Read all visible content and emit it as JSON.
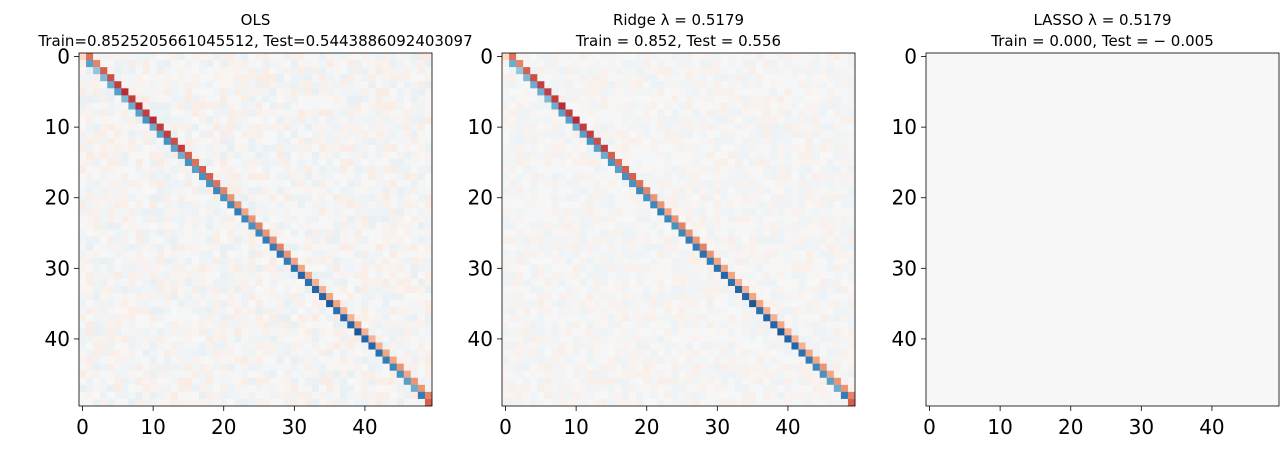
{
  "chart_data": [
    {
      "type": "heatmap",
      "title_lines": [
        "OLS",
        "Train=0.8525205661045512, Test=0.5443886092403097"
      ],
      "size": 50,
      "colormap": "RdBu",
      "diagonal_pattern": {
        "main": [
          0.2,
          -0.55,
          -0.4,
          -0.45,
          -0.5,
          -0.55,
          -0.45,
          -0.5,
          -0.55,
          -0.6,
          -0.5,
          -0.55,
          -0.6,
          -0.55,
          -0.5,
          -0.6,
          -0.55,
          -0.6,
          -0.6,
          -0.65,
          -0.6,
          -0.65,
          -0.7,
          -0.65,
          -0.6,
          -0.65,
          -0.7,
          -0.7,
          -0.75,
          -0.7,
          -0.75,
          -0.8,
          -0.75,
          -0.8,
          -0.8,
          -0.85,
          -0.75,
          -0.8,
          -0.8,
          -0.85,
          -0.8,
          -0.8,
          -0.75,
          -0.7,
          -0.65,
          -0.6,
          -0.55,
          -0.5,
          -0.7,
          0.6
        ],
        "upper": [
          0.55,
          0.5,
          0.6,
          0.65,
          0.7,
          0.75,
          0.7,
          0.75,
          0.7,
          0.75,
          0.7,
          0.7,
          0.65,
          0.7,
          0.6,
          0.55,
          0.6,
          0.6,
          0.55,
          0.5,
          0.45,
          0.45,
          0.4,
          0.45,
          0.5,
          0.45,
          0.45,
          0.5,
          0.45,
          0.4,
          0.4,
          0.4,
          0.35,
          0.35,
          0.4,
          0.4,
          0.35,
          0.35,
          0.4,
          0.35,
          0.35,
          0.35,
          0.4,
          0.4,
          0.45,
          0.4,
          0.45,
          0.45,
          0.5
        ]
      },
      "background_noise": 0.08,
      "xticks": [
        "0",
        "10",
        "20",
        "30",
        "40"
      ],
      "yticks": [
        "0",
        "10",
        "20",
        "30",
        "40"
      ]
    },
    {
      "type": "heatmap",
      "title_lines": [
        "Ridge λ = 0.5179",
        "Train = 0.852, Test = 0.556"
      ],
      "size": 50,
      "colormap": "RdBu",
      "diagonal_pattern": {
        "main": [
          0.2,
          -0.5,
          -0.4,
          -0.45,
          -0.5,
          -0.5,
          -0.45,
          -0.5,
          -0.55,
          -0.55,
          -0.5,
          -0.55,
          -0.6,
          -0.55,
          -0.5,
          -0.6,
          -0.55,
          -0.6,
          -0.6,
          -0.65,
          -0.6,
          -0.65,
          -0.7,
          -0.65,
          -0.6,
          -0.65,
          -0.7,
          -0.7,
          -0.75,
          -0.7,
          -0.75,
          -0.8,
          -0.75,
          -0.8,
          -0.8,
          -0.85,
          -0.75,
          -0.8,
          -0.8,
          -0.85,
          -0.8,
          -0.8,
          -0.75,
          -0.7,
          -0.65,
          -0.6,
          -0.55,
          -0.5,
          -0.7,
          0.6
        ],
        "upper": [
          0.55,
          0.5,
          0.6,
          0.65,
          0.7,
          0.7,
          0.7,
          0.75,
          0.7,
          0.75,
          0.7,
          0.7,
          0.65,
          0.7,
          0.6,
          0.55,
          0.6,
          0.6,
          0.55,
          0.5,
          0.45,
          0.45,
          0.4,
          0.45,
          0.5,
          0.45,
          0.45,
          0.5,
          0.45,
          0.4,
          0.4,
          0.4,
          0.35,
          0.35,
          0.4,
          0.4,
          0.35,
          0.35,
          0.4,
          0.35,
          0.35,
          0.35,
          0.4,
          0.4,
          0.45,
          0.4,
          0.45,
          0.45,
          0.5
        ]
      },
      "background_noise": 0.06,
      "xticks": [
        "0",
        "10",
        "20",
        "30",
        "40"
      ],
      "yticks": [
        "0",
        "10",
        "20",
        "30",
        "40"
      ]
    },
    {
      "type": "heatmap",
      "title_lines": [
        "LASSO λ = 0.5179",
        "Train = 0.000, Test = − 0.005"
      ],
      "size": 50,
      "colormap": "RdBu",
      "uniform_value": 0,
      "xticks": [
        "0",
        "10",
        "20",
        "30",
        "40"
      ],
      "yticks": [
        "0",
        "10",
        "20",
        "30",
        "40"
      ]
    }
  ]
}
